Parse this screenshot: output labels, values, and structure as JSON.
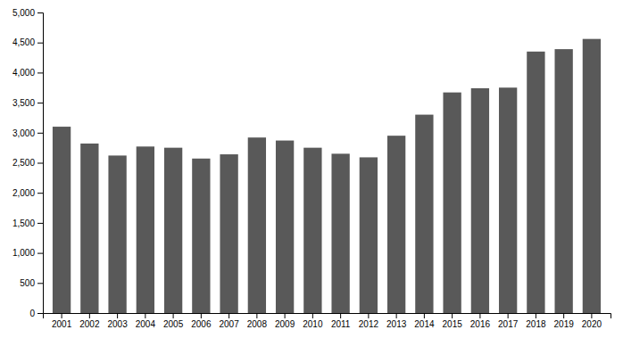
{
  "chart_data": {
    "type": "bar",
    "categories": [
      "2001",
      "2002",
      "2003",
      "2004",
      "2005",
      "2006",
      "2007",
      "2008",
      "2009",
      "2010",
      "2011",
      "2012",
      "2013",
      "2014",
      "2015",
      "2016",
      "2017",
      "2018",
      "2019",
      "2020"
    ],
    "values": [
      3100,
      2820,
      2620,
      2770,
      2750,
      2570,
      2640,
      2920,
      2870,
      2750,
      2650,
      2590,
      2950,
      3300,
      3670,
      3740,
      3750,
      4350,
      4390,
      4560
    ],
    "color": "#595959",
    "ylim": [
      0,
      5000
    ],
    "yticks": [
      0,
      500,
      {
        "value": 1000,
        "label": "1,000"
      },
      {
        "value": 1500,
        "label": "1,500"
      },
      {
        "value": 2000,
        "label": "2,000"
      },
      {
        "value": 2500,
        "label": "2,500"
      },
      {
        "value": 3000,
        "label": "3,000"
      },
      {
        "value": 3500,
        "label": "3,500"
      },
      {
        "value": 4000,
        "label": "4,000"
      },
      {
        "value": 4500,
        "label": "4,500"
      },
      {
        "value": 5000,
        "label": "5,000"
      }
    ],
    "grid": false
  }
}
